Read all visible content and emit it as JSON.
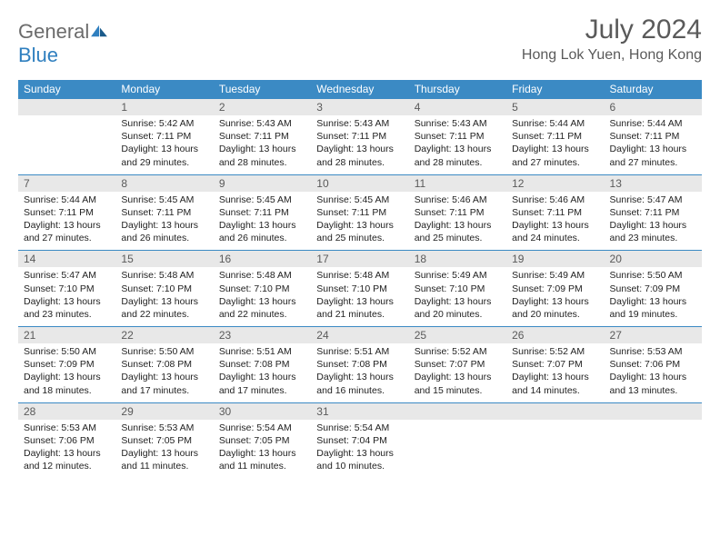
{
  "brand": {
    "name_a": "General",
    "name_b": "Blue"
  },
  "title": "July 2024",
  "location": "Hong Lok Yuen, Hong Kong",
  "colors": {
    "header_bg": "#3b8ac4",
    "header_text": "#ffffff",
    "daynum_bg": "#e8e8e8",
    "daynum_text": "#5a5a5a",
    "cell_text": "#222222",
    "rule": "#3b8ac4",
    "title_text": "#5a5a5a"
  },
  "dayNames": [
    "Sunday",
    "Monday",
    "Tuesday",
    "Wednesday",
    "Thursday",
    "Friday",
    "Saturday"
  ],
  "weeks": [
    [
      null,
      {
        "n": "1",
        "sr": "5:42 AM",
        "ss": "7:11 PM",
        "dl": "13 hours and 29 minutes."
      },
      {
        "n": "2",
        "sr": "5:43 AM",
        "ss": "7:11 PM",
        "dl": "13 hours and 28 minutes."
      },
      {
        "n": "3",
        "sr": "5:43 AM",
        "ss": "7:11 PM",
        "dl": "13 hours and 28 minutes."
      },
      {
        "n": "4",
        "sr": "5:43 AM",
        "ss": "7:11 PM",
        "dl": "13 hours and 28 minutes."
      },
      {
        "n": "5",
        "sr": "5:44 AM",
        "ss": "7:11 PM",
        "dl": "13 hours and 27 minutes."
      },
      {
        "n": "6",
        "sr": "5:44 AM",
        "ss": "7:11 PM",
        "dl": "13 hours and 27 minutes."
      }
    ],
    [
      {
        "n": "7",
        "sr": "5:44 AM",
        "ss": "7:11 PM",
        "dl": "13 hours and 27 minutes."
      },
      {
        "n": "8",
        "sr": "5:45 AM",
        "ss": "7:11 PM",
        "dl": "13 hours and 26 minutes."
      },
      {
        "n": "9",
        "sr": "5:45 AM",
        "ss": "7:11 PM",
        "dl": "13 hours and 26 minutes."
      },
      {
        "n": "10",
        "sr": "5:45 AM",
        "ss": "7:11 PM",
        "dl": "13 hours and 25 minutes."
      },
      {
        "n": "11",
        "sr": "5:46 AM",
        "ss": "7:11 PM",
        "dl": "13 hours and 25 minutes."
      },
      {
        "n": "12",
        "sr": "5:46 AM",
        "ss": "7:11 PM",
        "dl": "13 hours and 24 minutes."
      },
      {
        "n": "13",
        "sr": "5:47 AM",
        "ss": "7:11 PM",
        "dl": "13 hours and 23 minutes."
      }
    ],
    [
      {
        "n": "14",
        "sr": "5:47 AM",
        "ss": "7:10 PM",
        "dl": "13 hours and 23 minutes."
      },
      {
        "n": "15",
        "sr": "5:48 AM",
        "ss": "7:10 PM",
        "dl": "13 hours and 22 minutes."
      },
      {
        "n": "16",
        "sr": "5:48 AM",
        "ss": "7:10 PM",
        "dl": "13 hours and 22 minutes."
      },
      {
        "n": "17",
        "sr": "5:48 AM",
        "ss": "7:10 PM",
        "dl": "13 hours and 21 minutes."
      },
      {
        "n": "18",
        "sr": "5:49 AM",
        "ss": "7:10 PM",
        "dl": "13 hours and 20 minutes."
      },
      {
        "n": "19",
        "sr": "5:49 AM",
        "ss": "7:09 PM",
        "dl": "13 hours and 20 minutes."
      },
      {
        "n": "20",
        "sr": "5:50 AM",
        "ss": "7:09 PM",
        "dl": "13 hours and 19 minutes."
      }
    ],
    [
      {
        "n": "21",
        "sr": "5:50 AM",
        "ss": "7:09 PM",
        "dl": "13 hours and 18 minutes."
      },
      {
        "n": "22",
        "sr": "5:50 AM",
        "ss": "7:08 PM",
        "dl": "13 hours and 17 minutes."
      },
      {
        "n": "23",
        "sr": "5:51 AM",
        "ss": "7:08 PM",
        "dl": "13 hours and 17 minutes."
      },
      {
        "n": "24",
        "sr": "5:51 AM",
        "ss": "7:08 PM",
        "dl": "13 hours and 16 minutes."
      },
      {
        "n": "25",
        "sr": "5:52 AM",
        "ss": "7:07 PM",
        "dl": "13 hours and 15 minutes."
      },
      {
        "n": "26",
        "sr": "5:52 AM",
        "ss": "7:07 PM",
        "dl": "13 hours and 14 minutes."
      },
      {
        "n": "27",
        "sr": "5:53 AM",
        "ss": "7:06 PM",
        "dl": "13 hours and 13 minutes."
      }
    ],
    [
      {
        "n": "28",
        "sr": "5:53 AM",
        "ss": "7:06 PM",
        "dl": "13 hours and 12 minutes."
      },
      {
        "n": "29",
        "sr": "5:53 AM",
        "ss": "7:05 PM",
        "dl": "13 hours and 11 minutes."
      },
      {
        "n": "30",
        "sr": "5:54 AM",
        "ss": "7:05 PM",
        "dl": "13 hours and 11 minutes."
      },
      {
        "n": "31",
        "sr": "5:54 AM",
        "ss": "7:04 PM",
        "dl": "13 hours and 10 minutes."
      },
      null,
      null,
      null
    ]
  ],
  "labels": {
    "sunrise": "Sunrise:",
    "sunset": "Sunset:",
    "daylight": "Daylight:"
  }
}
